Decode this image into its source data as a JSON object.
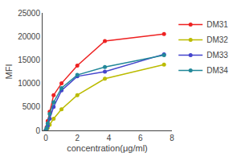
{
  "chart_data": {
    "type": "line",
    "x": [
      0.0,
      0.06,
      0.125,
      0.25,
      0.5,
      1.0,
      2.0,
      3.75,
      7.5
    ],
    "series": [
      {
        "name": "DM31",
        "color": "#ee2222",
        "values": [
          0,
          700,
          2000,
          4000,
          7500,
          10000,
          13800,
          19000,
          20500
        ]
      },
      {
        "name": "DM32",
        "color": "#bbbb00",
        "values": [
          0,
          200,
          500,
          1200,
          2500,
          4500,
          7500,
          11000,
          14000
        ]
      },
      {
        "name": "DM33",
        "color": "#4444cc",
        "values": [
          0,
          400,
          1000,
          2500,
          5000,
          8500,
          11500,
          12500,
          16200
        ]
      },
      {
        "name": "DM34",
        "color": "#228899",
        "values": [
          0,
          500,
          1500,
          3500,
          6000,
          9000,
          11800,
          13500,
          16000
        ]
      }
    ],
    "xlabel": "concentration(μg/ml)",
    "ylabel": "MFI",
    "xlim": [
      -0.2,
      8
    ],
    "ylim": [
      0,
      25000
    ],
    "xticks": [
      0,
      2,
      4,
      6,
      8
    ],
    "yticks": [
      0,
      5000,
      10000,
      15000,
      20000,
      25000
    ],
    "marker": "circle",
    "legend": "upper right",
    "grid": false
  }
}
